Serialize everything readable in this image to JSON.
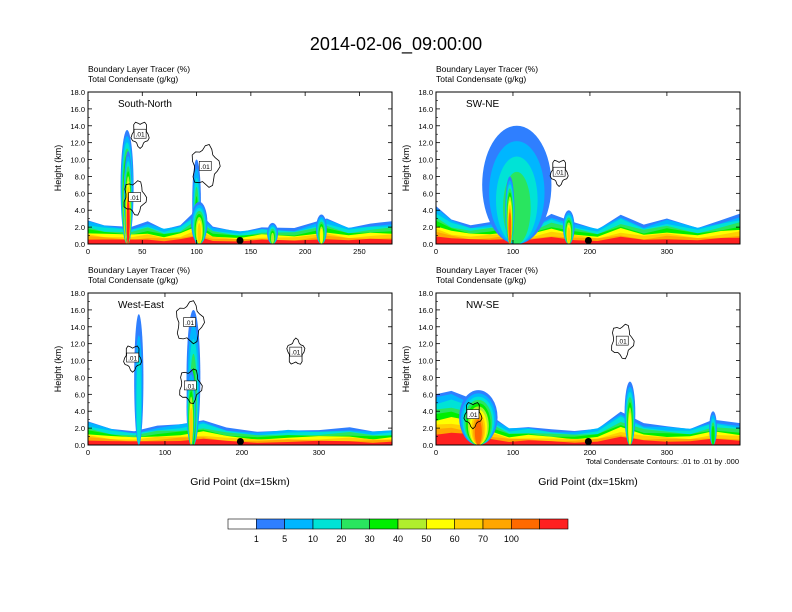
{
  "figure": {
    "title": "2014-02-06_09:00:00",
    "footnote": "Total Condensate Contours: .01 to .01 by .000"
  },
  "legend": {
    "colors": [
      "#ffffff",
      "#2f7fff",
      "#00b6ff",
      "#00e3d6",
      "#29e55f",
      "#00ee00",
      "#b0ee2d",
      "#ffff00",
      "#ffd000",
      "#ffa600",
      "#ff6a00",
      "#ff2020"
    ],
    "labels": [
      "1",
      "5",
      "10",
      "20",
      "30",
      "40",
      "50",
      "60",
      "70",
      "100"
    ]
  },
  "chart_data": [
    {
      "type": "heatmap",
      "panel": "top-left",
      "title": "South-North",
      "subtitle_lines": [
        "Boundary Layer Tracer   (%)",
        "Total Condensate   (g/kg)"
      ],
      "xlabel": "",
      "ylabel": "Height (km)",
      "xlim": [
        0,
        280
      ],
      "ylim": [
        0,
        18
      ],
      "x_ticks": [
        "0",
        "50",
        "100",
        "150",
        "200",
        "250"
      ],
      "x_tick_values": [
        0,
        50,
        100,
        150,
        200,
        250
      ],
      "y_ticks": [
        "0.0",
        "2.0",
        "4.0",
        "6.0",
        "8.0",
        "10.0",
        "12.0",
        "14.0",
        "16.0",
        "18.0"
      ],
      "y_tick_values": [
        0,
        2,
        4,
        6,
        8,
        10,
        12,
        14,
        16,
        18
      ],
      "marker_x": 140,
      "contour_labels": [
        {
          "x": 48,
          "y": 13.0,
          "text": ".01"
        },
        {
          "x": 43,
          "y": 5.5,
          "text": ".01"
        },
        {
          "x": 108,
          "y": 9.2,
          "text": ".01"
        }
      ],
      "tracer_columns": [
        {
          "x": 30,
          "width": 12,
          "top": 13.5,
          "max_level": 11
        },
        {
          "x": 33,
          "width": 8,
          "top": 11.0,
          "max_level": 11
        },
        {
          "x": 96,
          "width": 8,
          "top": 10.0,
          "max_level": 5
        },
        {
          "x": 95,
          "width": 15,
          "top": 5.0,
          "max_level": 8
        },
        {
          "x": 210,
          "width": 10,
          "top": 3.5,
          "max_level": 7
        },
        {
          "x": 165,
          "width": 10,
          "top": 2.5,
          "max_level": 6
        }
      ],
      "tracer_band": [
        {
          "x": 0,
          "top": 2.8
        },
        {
          "x": 15,
          "top": 2.3
        },
        {
          "x": 40,
          "top": 2.0
        },
        {
          "x": 55,
          "top": 2.6
        },
        {
          "x": 70,
          "top": 1.8
        },
        {
          "x": 85,
          "top": 2.3
        },
        {
          "x": 100,
          "top": 4.0
        },
        {
          "x": 115,
          "top": 2.0
        },
        {
          "x": 140,
          "top": 1.5
        },
        {
          "x": 160,
          "top": 2.0
        },
        {
          "x": 190,
          "top": 1.8
        },
        {
          "x": 220,
          "top": 3.0
        },
        {
          "x": 240,
          "top": 2.0
        },
        {
          "x": 260,
          "top": 2.4
        },
        {
          "x": 280,
          "top": 2.6
        }
      ]
    },
    {
      "type": "heatmap",
      "panel": "top-right",
      "title": "SW-NE",
      "subtitle_lines": [
        "Boundary Layer Tracer   (%)",
        "Total Condensate   (g/kg)"
      ],
      "xlabel": "",
      "ylabel": "Height (km)",
      "xlim": [
        0,
        395
      ],
      "ylim": [
        0,
        18
      ],
      "x_ticks": [
        "0",
        "100",
        "200",
        "300"
      ],
      "x_tick_values": [
        0,
        100,
        200,
        300
      ],
      "y_ticks": [
        "0.0",
        "2.0",
        "4.0",
        "6.0",
        "8.0",
        "10.0",
        "12.0",
        "14.0",
        "16.0",
        "18.0"
      ],
      "y_tick_values": [
        0,
        2,
        4,
        6,
        8,
        10,
        12,
        14,
        16,
        18
      ],
      "marker_x": 198,
      "contour_labels": [
        {
          "x": 160,
          "y": 8.5,
          "text": ".01"
        }
      ],
      "tracer_columns": [
        {
          "x": 60,
          "width": 90,
          "top": 14.0,
          "max_level": 4
        },
        {
          "x": 90,
          "width": 12,
          "top": 8.0,
          "max_level": 10
        },
        {
          "x": 165,
          "width": 15,
          "top": 4.0,
          "max_level": 8
        }
      ],
      "tracer_band": [
        {
          "x": 0,
          "top": 4.5
        },
        {
          "x": 20,
          "top": 3.0
        },
        {
          "x": 45,
          "top": 2.2
        },
        {
          "x": 70,
          "top": 2.5
        },
        {
          "x": 95,
          "top": 3.0
        },
        {
          "x": 120,
          "top": 2.0
        },
        {
          "x": 150,
          "top": 3.5
        },
        {
          "x": 180,
          "top": 2.5
        },
        {
          "x": 210,
          "top": 1.8
        },
        {
          "x": 240,
          "top": 3.5
        },
        {
          "x": 270,
          "top": 2.2
        },
        {
          "x": 300,
          "top": 3.0
        },
        {
          "x": 340,
          "top": 2.0
        },
        {
          "x": 370,
          "top": 2.8
        },
        {
          "x": 395,
          "top": 3.5
        }
      ]
    },
    {
      "type": "heatmap",
      "panel": "bottom-left",
      "title": "West-East",
      "subtitle_lines": [
        "Boundary Layer Tracer   (%)",
        "Total Condensate   (g/kg)"
      ],
      "xlabel": "Grid Point (dx=15km)",
      "ylabel": "Height (km)",
      "xlim": [
        0,
        395
      ],
      "ylim": [
        0,
        18
      ],
      "x_ticks": [
        "0",
        "100",
        "200",
        "300"
      ],
      "x_tick_values": [
        0,
        100,
        200,
        300
      ],
      "y_ticks": [
        "0.0",
        "2.0",
        "4.0",
        "6.0",
        "8.0",
        "10.0",
        "12.0",
        "14.0",
        "16.0",
        "18.0"
      ],
      "y_tick_values": [
        0,
        2,
        4,
        6,
        8,
        10,
        12,
        14,
        16,
        18
      ],
      "marker_x": 198,
      "contour_labels": [
        {
          "x": 58,
          "y": 10.3,
          "text": ".01"
        },
        {
          "x": 133,
          "y": 7.0,
          "text": ".01"
        },
        {
          "x": 132,
          "y": 14.5,
          "text": ".01"
        },
        {
          "x": 270,
          "y": 11.0,
          "text": ".01"
        }
      ],
      "tracer_columns": [
        {
          "x": 128,
          "width": 18,
          "top": 16.0,
          "max_level": 5
        },
        {
          "x": 128,
          "width": 12,
          "top": 9.0,
          "max_level": 8
        },
        {
          "x": 60,
          "width": 12,
          "top": 15.5,
          "max_level": 3
        }
      ],
      "tracer_band": [
        {
          "x": 0,
          "top": 2.8
        },
        {
          "x": 30,
          "top": 2.0
        },
        {
          "x": 60,
          "top": 1.6
        },
        {
          "x": 90,
          "top": 2.2
        },
        {
          "x": 120,
          "top": 2.5
        },
        {
          "x": 150,
          "top": 3.0
        },
        {
          "x": 180,
          "top": 2.0
        },
        {
          "x": 220,
          "top": 1.5
        },
        {
          "x": 260,
          "top": 1.8
        },
        {
          "x": 300,
          "top": 1.8
        },
        {
          "x": 340,
          "top": 2.0
        },
        {
          "x": 370,
          "top": 1.6
        },
        {
          "x": 395,
          "top": 1.8
        }
      ]
    },
    {
      "type": "heatmap",
      "panel": "bottom-right",
      "title": "NW-SE",
      "subtitle_lines": [
        "Boundary Layer Tracer   (%)",
        "Total Condensate   (g/kg)"
      ],
      "xlabel": "Grid Point (dx=15km)",
      "ylabel": "Height (km)",
      "xlim": [
        0,
        395
      ],
      "ylim": [
        0,
        18
      ],
      "x_ticks": [
        "0",
        "100",
        "200",
        "300"
      ],
      "x_tick_values": [
        0,
        100,
        200,
        300
      ],
      "y_ticks": [
        "0.0",
        "2.0",
        "4.0",
        "6.0",
        "8.0",
        "10.0",
        "12.0",
        "14.0",
        "16.0",
        "18.0"
      ],
      "y_tick_values": [
        0,
        2,
        4,
        6,
        8,
        10,
        12,
        14,
        16,
        18
      ],
      "marker_x": 198,
      "contour_labels": [
        {
          "x": 48,
          "y": 3.6,
          "text": ".01"
        },
        {
          "x": 242,
          "y": 12.3,
          "text": ".01"
        }
      ],
      "tracer_columns": [
        {
          "x": 30,
          "width": 50,
          "top": 6.5,
          "max_level": 10
        },
        {
          "x": 245,
          "width": 14,
          "top": 7.5,
          "max_level": 7
        },
        {
          "x": 355,
          "width": 10,
          "top": 4.0,
          "max_level": 5
        }
      ],
      "tracer_band": [
        {
          "x": 0,
          "top": 6.0
        },
        {
          "x": 20,
          "top": 6.5
        },
        {
          "x": 45,
          "top": 5.5
        },
        {
          "x": 70,
          "top": 3.5
        },
        {
          "x": 95,
          "top": 2.0
        },
        {
          "x": 120,
          "top": 2.2
        },
        {
          "x": 150,
          "top": 1.8
        },
        {
          "x": 180,
          "top": 1.6
        },
        {
          "x": 210,
          "top": 2.0
        },
        {
          "x": 240,
          "top": 4.0
        },
        {
          "x": 270,
          "top": 2.5
        },
        {
          "x": 300,
          "top": 2.2
        },
        {
          "x": 330,
          "top": 2.0
        },
        {
          "x": 360,
          "top": 3.0
        },
        {
          "x": 395,
          "top": 2.5
        }
      ]
    }
  ]
}
